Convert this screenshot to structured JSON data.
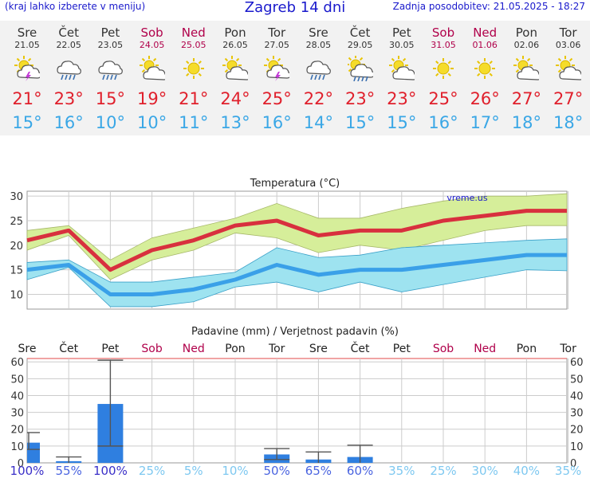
{
  "header": {
    "left_note": "(kraj lahko izberete v meniju)",
    "title": "Zagreb 14 dni",
    "updated": "Zadnja posodobitev: 21.05.2025 - 18:27"
  },
  "days": [
    {
      "name": "Sre",
      "date": "21.05",
      "weekend": false,
      "icon": "sun-cloud-lightning-icon",
      "max": "21°",
      "min": "15°"
    },
    {
      "name": "Čet",
      "date": "22.05",
      "weekend": false,
      "icon": "cloud-rain-icon",
      "max": "23°",
      "min": "16°"
    },
    {
      "name": "Pet",
      "date": "23.05",
      "weekend": false,
      "icon": "cloud-rain-icon",
      "max": "15°",
      "min": "10°"
    },
    {
      "name": "Sob",
      "date": "24.05",
      "weekend": true,
      "icon": "sun-cloud-icon",
      "max": "19°",
      "min": "10°"
    },
    {
      "name": "Ned",
      "date": "25.05",
      "weekend": true,
      "icon": "sun-icon",
      "max": "21°",
      "min": "11°"
    },
    {
      "name": "Pon",
      "date": "26.05",
      "weekend": false,
      "icon": "sun-cloud-icon",
      "max": "24°",
      "min": "13°"
    },
    {
      "name": "Tor",
      "date": "27.05",
      "weekend": false,
      "icon": "sun-cloud-lightning-icon",
      "max": "25°",
      "min": "16°"
    },
    {
      "name": "Sre",
      "date": "28.05",
      "weekend": false,
      "icon": "cloud-rain-icon",
      "max": "22°",
      "min": "14°"
    },
    {
      "name": "Čet",
      "date": "29.05",
      "weekend": false,
      "icon": "sun-cloud-rain-icon",
      "max": "23°",
      "min": "15°"
    },
    {
      "name": "Pet",
      "date": "30.05",
      "weekend": false,
      "icon": "sun-cloud-icon",
      "max": "23°",
      "min": "15°"
    },
    {
      "name": "Sob",
      "date": "31.05",
      "weekend": true,
      "icon": "sun-icon",
      "max": "25°",
      "min": "16°"
    },
    {
      "name": "Ned",
      "date": "01.06",
      "weekend": true,
      "icon": "sun-icon",
      "max": "26°",
      "min": "17°"
    },
    {
      "name": "Pon",
      "date": "02.06",
      "weekend": false,
      "icon": "sun-cloud-icon",
      "max": "27°",
      "min": "18°"
    },
    {
      "name": "Tor",
      "date": "03.06",
      "weekend": false,
      "icon": "sun-cloud-icon",
      "max": "27°",
      "min": "18°"
    }
  ],
  "colors": {
    "max_temp": "#e0202c",
    "min_temp": "#3aa7e6",
    "max_band": "#d6ee9a",
    "min_band": "#9ee3f0",
    "max_line": "#d8303e",
    "min_line": "#3aa0e8",
    "precip_bar": "#2f7fe0",
    "weekend": "#b0004a",
    "prob_dark": "#3a2fc8",
    "prob_mid": "#4a64e0",
    "prob_light": "#7ec8f0"
  },
  "chart_data": [
    {
      "type": "line",
      "title": "Temperatura (°C)",
      "watermark": "vreme.us",
      "ylim": [
        7,
        31
      ],
      "yticks": [
        10,
        15,
        20,
        25,
        30
      ],
      "series": [
        {
          "values": [
            21,
            23,
            15,
            19,
            21,
            24,
            25,
            22,
            23,
            23,
            25,
            26,
            27,
            27
          ],
          "band_low": [
            19,
            22,
            13,
            17,
            19,
            22.5,
            21.5,
            18.5,
            20,
            19,
            21,
            23,
            24,
            24
          ],
          "band_high": [
            23,
            24,
            17,
            21.5,
            23.5,
            25.5,
            28.5,
            25.5,
            25.5,
            27.5,
            29,
            30,
            30,
            30.5
          ]
        },
        {
          "values": [
            15,
            16,
            10,
            10,
            11,
            13,
            16,
            14,
            15,
            15,
            16,
            17,
            18,
            18
          ],
          "band_low": [
            13,
            15.5,
            7.5,
            7.5,
            8.5,
            11.5,
            12.5,
            10.5,
            12.5,
            10.5,
            12,
            13.5,
            15,
            14.8
          ],
          "band_high": [
            16.5,
            17,
            12.5,
            12.5,
            13.5,
            14.5,
            19.5,
            17.5,
            18,
            19.5,
            20,
            20.5,
            21,
            21.3
          ]
        }
      ]
    },
    {
      "type": "bar",
      "title": "Padavine (mm) / Verjetnost padavin (%)",
      "categories": [
        "Sre",
        "Čet",
        "Pet",
        "Sob",
        "Ned",
        "Pon",
        "Tor",
        "Sre",
        "Čet",
        "Pet",
        "Sob",
        "Ned",
        "Pon",
        "Tor"
      ],
      "ylim": [
        0,
        62
      ],
      "yticks": [
        0,
        10,
        20,
        30,
        40,
        50,
        60
      ],
      "values": [
        12,
        1,
        35,
        0,
        0,
        0,
        5,
        2,
        3.5,
        0,
        0,
        0,
        0,
        0
      ],
      "err_low": [
        8,
        0,
        10,
        0,
        0,
        0,
        2,
        0,
        0,
        0,
        0,
        0,
        0,
        0
      ],
      "err_high": [
        18,
        3.5,
        61,
        0,
        0,
        0,
        8.5,
        6.5,
        10.5,
        0,
        0,
        0,
        0,
        0
      ],
      "probabilities": [
        "100%",
        "55%",
        "100%",
        "25%",
        "5%",
        "10%",
        "50%",
        "65%",
        "60%",
        "35%",
        "25%",
        "30%",
        "40%",
        "35%"
      ],
      "prob_levels": [
        100,
        55,
        100,
        25,
        5,
        10,
        50,
        65,
        60,
        35,
        25,
        30,
        40,
        35
      ]
    }
  ]
}
